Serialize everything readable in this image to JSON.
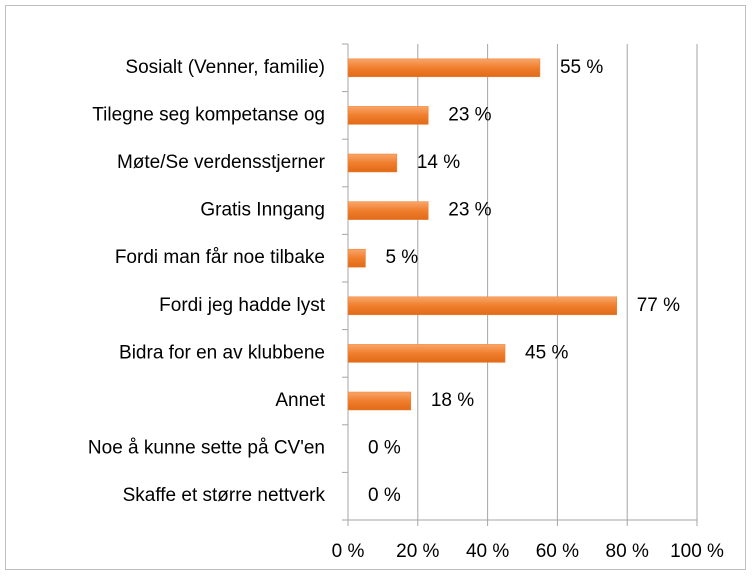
{
  "chart_data": {
    "type": "barh",
    "categories": [
      "Sosialt (Venner, familie)",
      "Tilegne seg kompetanse og",
      "Møte/Se verdensstjerner",
      "Gratis Inngang",
      "Fordi man får noe tilbake",
      "Fordi jeg hadde lyst",
      "Bidra for en av klubbene",
      "Annet",
      "Noe å kunne sette på CV'en",
      "Skaffe et større nettverk"
    ],
    "values": [
      55,
      23,
      14,
      23,
      5,
      77,
      45,
      18,
      0,
      0
    ],
    "value_labels": [
      "55 %",
      "23 %",
      "14 %",
      "23 %",
      "5 %",
      "77 %",
      "45 %",
      "18 %",
      "0 %",
      "0 %"
    ],
    "color": "#f07e2d",
    "xlim": [
      0,
      100
    ],
    "xticks": [
      {
        "value": 0,
        "label": "0 %"
      },
      {
        "value": 20,
        "label": "20 %"
      },
      {
        "value": 40,
        "label": "40 %"
      },
      {
        "value": 60,
        "label": "60 %"
      },
      {
        "value": 80,
        "label": "80 %"
      },
      {
        "value": 100,
        "label": "100 %"
      }
    ],
    "grid": true
  }
}
